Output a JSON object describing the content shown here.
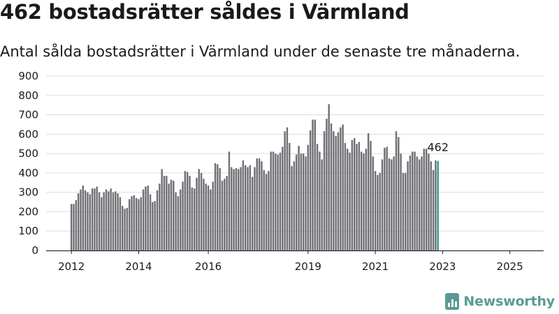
{
  "title": "462 bostadsrätter såldes i Värmland",
  "subtitle": "Antal sålda bostadsrätter i Värmland under de senaste tre månaderna.",
  "brand": "Newsworthy",
  "colors": {
    "bar": "#6e6e73",
    "highlight": "#2a9d8f",
    "grid": "#dddddd",
    "brand": "#5a9a94"
  },
  "chart_data": {
    "type": "bar",
    "title": "462 bostadsrätter såldes i Värmland",
    "subtitle": "Antal sålda bostadsrätter i Värmland under de senaste tre månaderna.",
    "xlabel": "",
    "ylabel": "",
    "ylim": [
      0,
      900
    ],
    "yticks": [
      "0",
      "100",
      "200",
      "300",
      "400",
      "500",
      "600",
      "700",
      "800",
      "900"
    ],
    "xticks": [
      "2012",
      "2014",
      "2016",
      "2019",
      "2021",
      "2023",
      "2025"
    ],
    "grid": true,
    "highlight_label": "462",
    "values": [
      240,
      240,
      260,
      295,
      315,
      335,
      310,
      300,
      290,
      320,
      320,
      330,
      300,
      275,
      300,
      315,
      305,
      320,
      300,
      305,
      295,
      275,
      230,
      215,
      220,
      265,
      280,
      285,
      270,
      265,
      275,
      315,
      330,
      335,
      290,
      250,
      255,
      310,
      345,
      420,
      385,
      385,
      345,
      365,
      360,
      300,
      280,
      315,
      355,
      410,
      405,
      385,
      325,
      320,
      375,
      420,
      400,
      370,
      345,
      335,
      315,
      355,
      450,
      445,
      425,
      360,
      370,
      385,
      510,
      430,
      420,
      425,
      420,
      430,
      465,
      440,
      430,
      440,
      380,
      430,
      475,
      475,
      460,
      415,
      395,
      410,
      510,
      510,
      500,
      495,
      505,
      535,
      615,
      635,
      555,
      435,
      460,
      495,
      540,
      500,
      500,
      485,
      545,
      620,
      675,
      675,
      550,
      510,
      470,
      615,
      680,
      755,
      655,
      615,
      590,
      610,
      635,
      650,
      555,
      525,
      505,
      570,
      580,
      550,
      560,
      510,
      500,
      525,
      605,
      565,
      485,
      410,
      390,
      400,
      470,
      530,
      535,
      475,
      470,
      485,
      615,
      585,
      500,
      400,
      400,
      460,
      490,
      510,
      510,
      485,
      470,
      485,
      525,
      525,
      500,
      460,
      415,
      465,
      462
    ]
  }
}
